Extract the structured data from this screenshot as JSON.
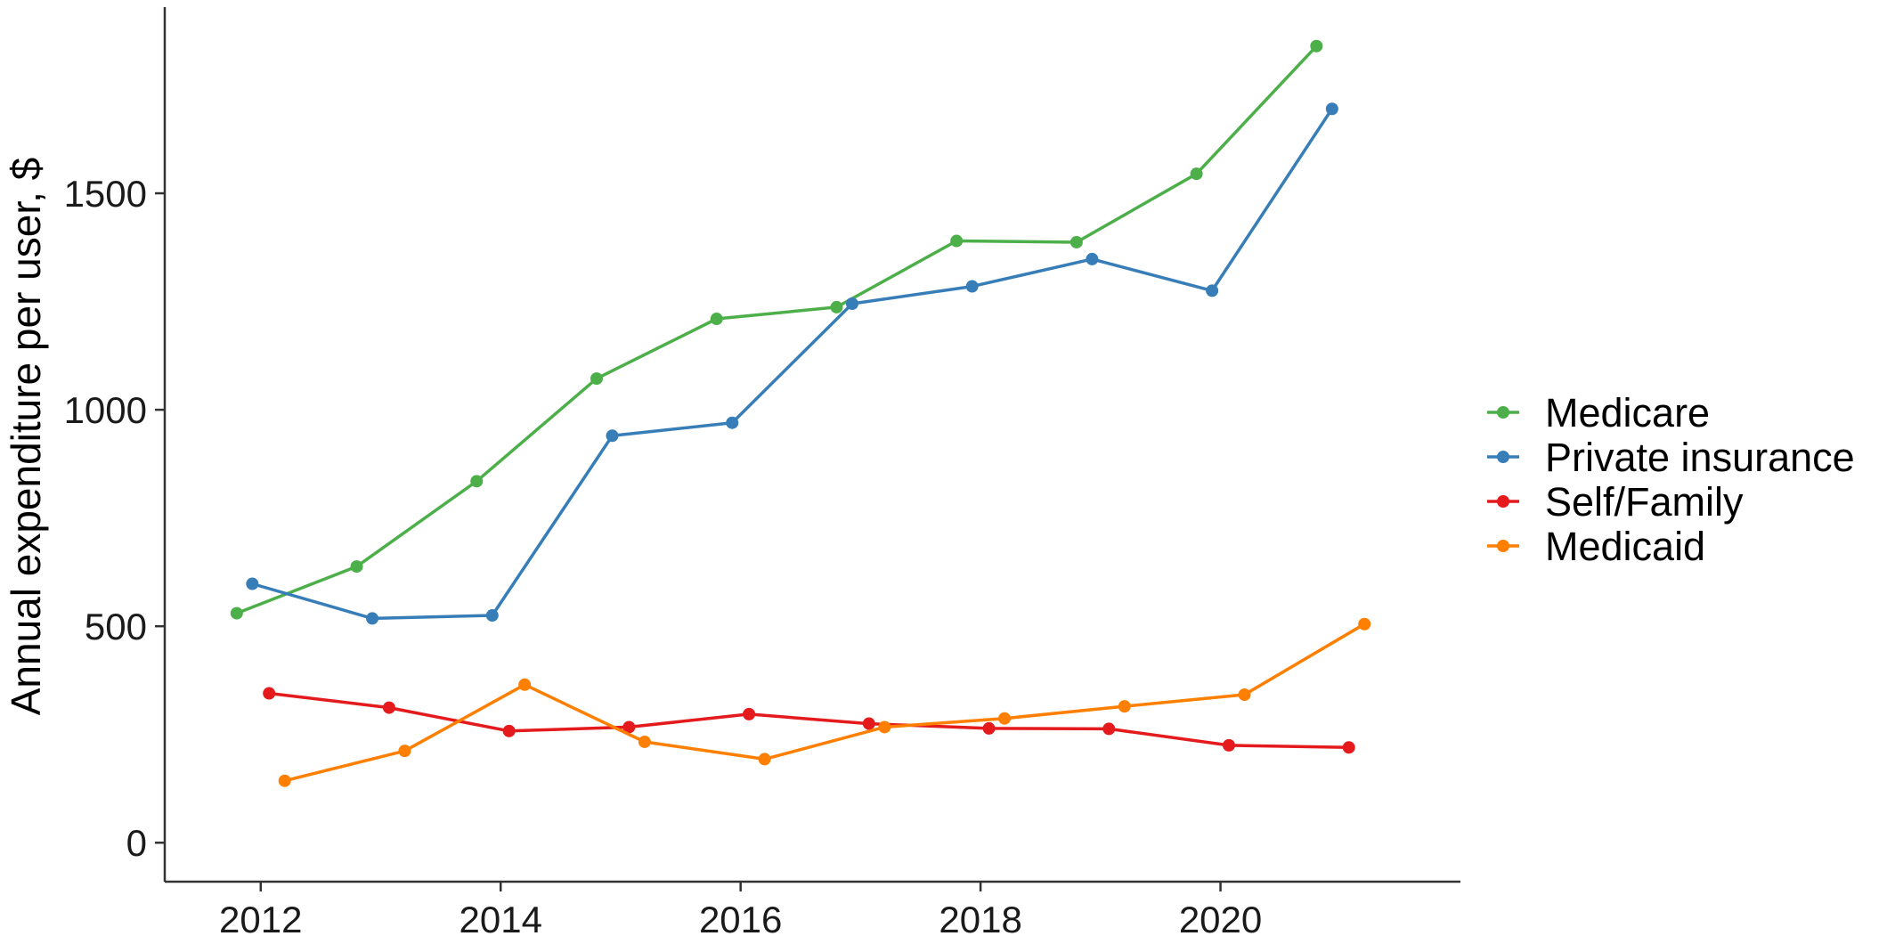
{
  "chart_data": {
    "type": "line",
    "title": "",
    "xlabel": "",
    "ylabel": "Annual expenditure per user, $",
    "xlim": [
      2011.2,
      2022.0
    ],
    "ylim": [
      -90,
      1930
    ],
    "x_ticks": [
      "2012",
      "2014",
      "2016",
      "2018",
      "2020"
    ],
    "y_ticks": [
      "0",
      "500",
      "1000",
      "1500"
    ],
    "grid": false,
    "legend_position": "right",
    "series": [
      {
        "name": "Medicare",
        "color": "#4daf4a",
        "x": [
          2011.8,
          2012.8,
          2013.8,
          2014.8,
          2015.8,
          2016.8,
          2017.8,
          2018.8,
          2019.8,
          2020.8
        ],
        "y": [
          530,
          638,
          835,
          1072,
          1210,
          1237,
          1390,
          1387,
          1545,
          1840
        ]
      },
      {
        "name": "Private insurance",
        "color": "#377eb8",
        "x": [
          2011.93,
          2012.93,
          2013.93,
          2014.93,
          2015.93,
          2016.93,
          2017.93,
          2018.93,
          2019.93,
          2020.93
        ],
        "y": [
          598,
          518,
          525,
          940,
          970,
          1245,
          1285,
          1348,
          1275,
          1695
        ]
      },
      {
        "name": "Self/Family",
        "color": "#e41a1c",
        "x": [
          2012.07,
          2013.07,
          2014.07,
          2015.07,
          2016.07,
          2017.07,
          2018.07,
          2019.07,
          2020.07,
          2021.07
        ],
        "y": [
          345,
          312,
          258,
          267,
          297,
          275,
          264,
          263,
          225,
          220
        ]
      },
      {
        "name": "Medicaid",
        "color": "#ff7f00",
        "x": [
          2012.2,
          2013.2,
          2014.2,
          2015.2,
          2016.2,
          2017.2,
          2018.2,
          2019.2,
          2020.2,
          2021.2
        ],
        "y": [
          143,
          212,
          365,
          233,
          193,
          267,
          287,
          315,
          342,
          505
        ]
      }
    ]
  }
}
